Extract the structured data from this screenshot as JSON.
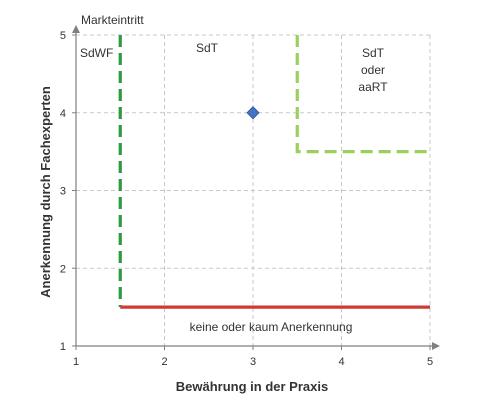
{
  "chart_data": {
    "type": "scatter",
    "xlabel": "Bewährung in der Praxis",
    "ylabel": "Anerkennung durch Fachexperten",
    "xlim": [
      1,
      5
    ],
    "ylim": [
      1,
      5
    ],
    "x_ticks": [
      1,
      2,
      3,
      4,
      5
    ],
    "y_ticks": [
      1,
      2,
      3,
      4,
      5
    ],
    "grid": true,
    "series": [
      {
        "marker": "diamond",
        "color": "#4472c4",
        "points": [
          {
            "x": 3,
            "y": 4
          }
        ]
      }
    ],
    "reference_lines": [
      {
        "id": "markteintritt",
        "style": "dashed",
        "color": "#2e9a44",
        "points": [
          [
            1.5,
            5
          ],
          [
            1.5,
            1.5
          ]
        ]
      },
      {
        "id": "anerkennung",
        "style": "solid",
        "color": "#d03a36",
        "points": [
          [
            1.5,
            1.5
          ],
          [
            5,
            1.5
          ]
        ]
      },
      {
        "id": "sdt-aart",
        "style": "dashed",
        "color": "#9ccf5c",
        "points": [
          [
            3.5,
            5
          ],
          [
            3.5,
            3.5
          ],
          [
            5,
            3.5
          ]
        ]
      }
    ],
    "annotations": [
      {
        "id": "markteintritt",
        "text": "Markteintritt"
      },
      {
        "id": "sdwf",
        "text": "SdWF"
      },
      {
        "id": "sdt",
        "text": "SdT"
      },
      {
        "id": "sdt-aart-1",
        "text": "SdT"
      },
      {
        "id": "sdt-aart-2",
        "text": "oder"
      },
      {
        "id": "sdt-aart-3",
        "text": "aaRT"
      },
      {
        "id": "keine",
        "text": "keine oder kaum Anerkennung"
      }
    ]
  }
}
